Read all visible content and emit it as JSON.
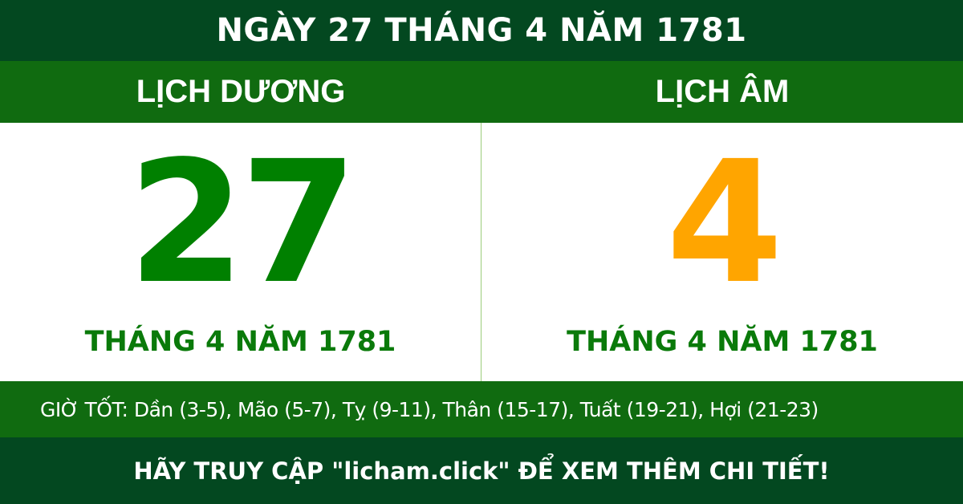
{
  "title": "NGÀY 27 THÁNG 4 NĂM 1781",
  "solar": {
    "heading": "LỊCH DƯƠNG",
    "day": "27",
    "month_year": "THÁNG 4 NĂM 1781"
  },
  "lunar": {
    "heading": "LỊCH ÂM",
    "day": "4",
    "month_year": "THÁNG 4 NĂM 1781"
  },
  "good_hours": "GIỜ TỐT: Dần (3-5), Mão (5-7), Tỵ (9-11), Thân (15-17), Tuất (19-21), Hợi (21-23)",
  "footer": "HÃY TRUY CẬP \"licham.click\" ĐỂ XEM THÊM CHI TIẾT!",
  "colors": {
    "dark_green": "#034820",
    "green": "#106b10",
    "solar_day": "#008000",
    "lunar_day": "#ffa500"
  }
}
